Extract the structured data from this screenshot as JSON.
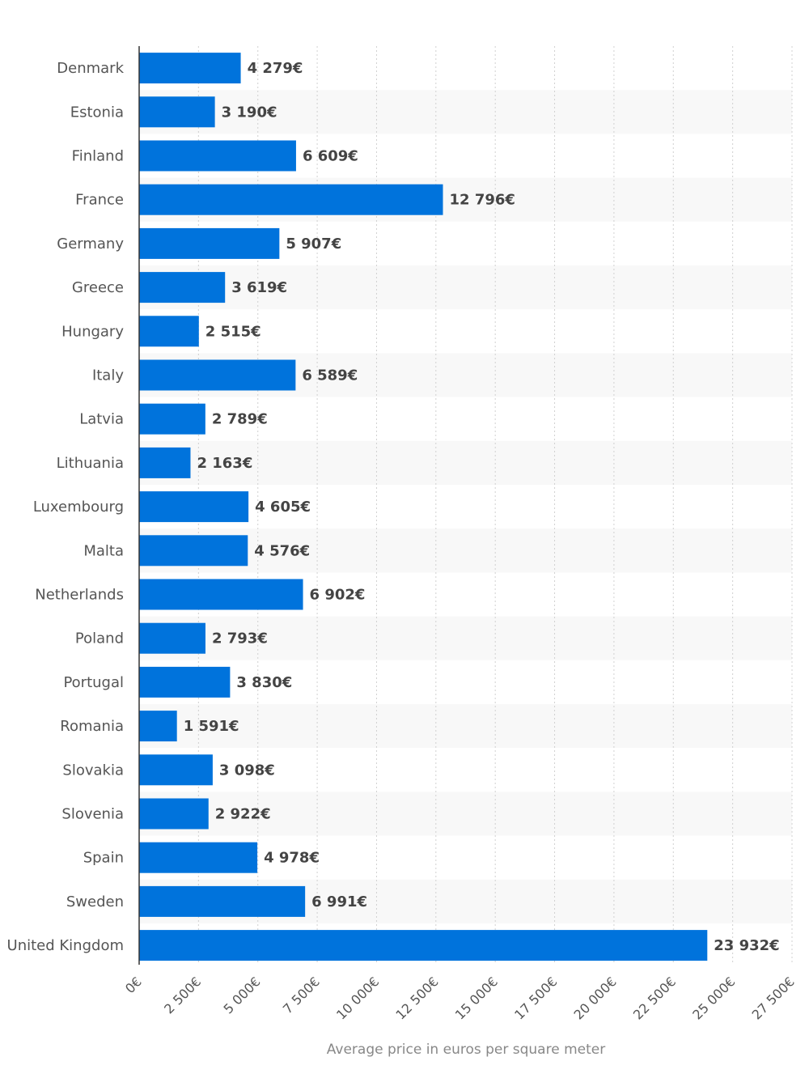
{
  "chart_data": {
    "type": "bar",
    "orientation": "horizontal",
    "categories": [
      "Denmark",
      "Estonia",
      "Finland",
      "France",
      "Germany",
      "Greece",
      "Hungary",
      "Italy",
      "Latvia",
      "Lithuania",
      "Luxembourg",
      "Malta",
      "Netherlands",
      "Poland",
      "Portugal",
      "Romania",
      "Slovakia",
      "Slovenia",
      "Spain",
      "Sweden",
      "United Kingdom"
    ],
    "values": [
      4279,
      3190,
      6609,
      12796,
      5907,
      3619,
      2515,
      6589,
      2789,
      2163,
      4605,
      4576,
      6902,
      2793,
      3830,
      1591,
      3098,
      2922,
      4978,
      6991,
      23932
    ],
    "value_labels": [
      "4 279€",
      "3 190€",
      "6 609€",
      "12 796€",
      "5 907€",
      "3 619€",
      "2 515€",
      "6 589€",
      "2 789€",
      "2 163€",
      "4 605€",
      "4 576€",
      "6 902€",
      "2 793€",
      "3 830€",
      "1 591€",
      "3 098€",
      "2 922€",
      "4 978€",
      "6 991€",
      "23 932€"
    ],
    "xlabel": "Average price in euros per square meter",
    "ylabel": "",
    "xlim": [
      0,
      27500
    ],
    "xticks": [
      0,
      2500,
      5000,
      7500,
      10000,
      12500,
      15000,
      17500,
      20000,
      22500,
      25000,
      27500
    ],
    "xtick_labels": [
      "0€",
      "2 500€",
      "5 000€",
      "7 500€",
      "10 000€",
      "12 500€",
      "15 000€",
      "17 500€",
      "20 000€",
      "22 500€",
      "25 000€",
      "27 500€"
    ],
    "grid": "vertical-dashed",
    "bar_color": "#0073dc",
    "band_color": "#f8f8f8"
  }
}
